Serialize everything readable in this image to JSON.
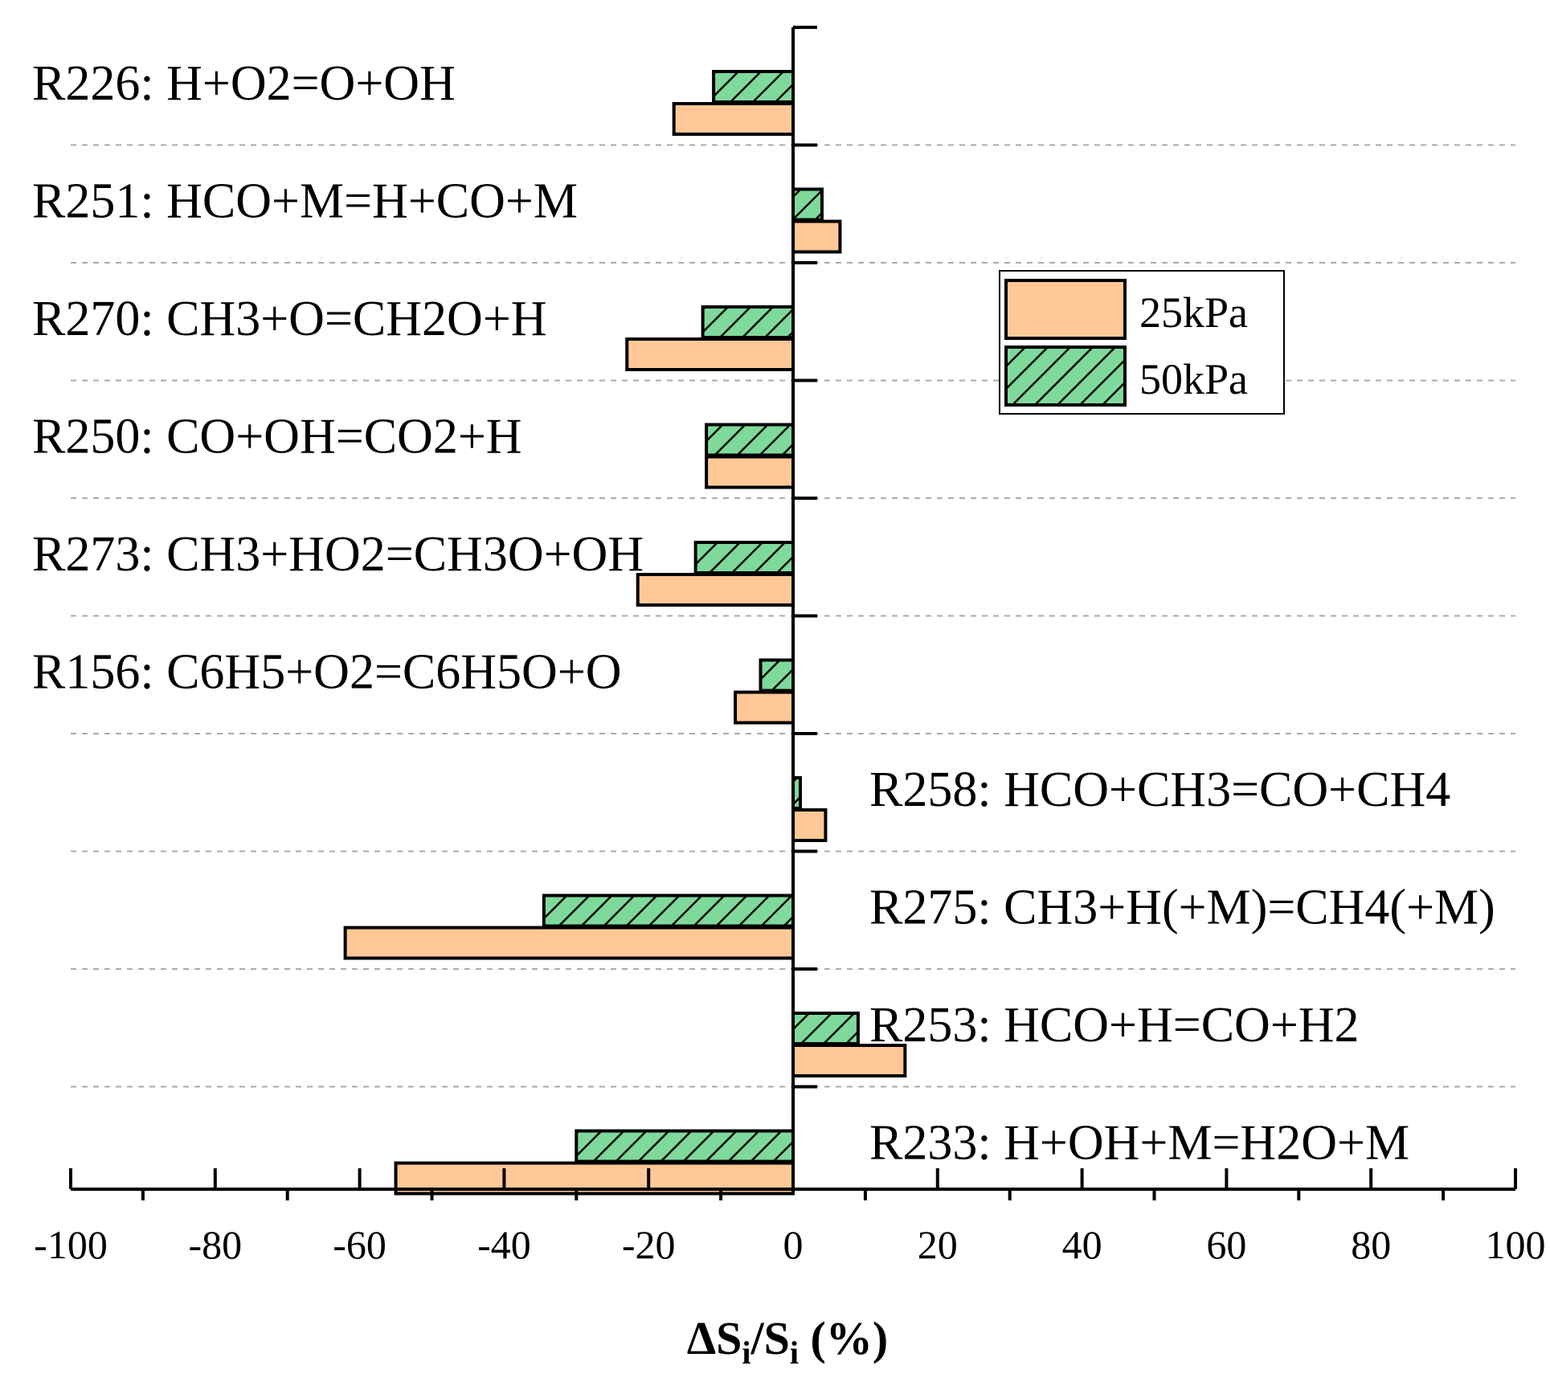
{
  "chart_data": {
    "type": "bar",
    "orientation": "horizontal",
    "title": "",
    "xlabel": {
      "delta": "ΔS",
      "sub1": "i",
      "slash": "/S",
      "sub2": "i",
      "unit": " (%)"
    },
    "ylabel": "",
    "xlim": [
      -100,
      100
    ],
    "x_ticks": [
      -100,
      -80,
      -60,
      -40,
      -20,
      0,
      20,
      40,
      60,
      80,
      100
    ],
    "grid": "horizontal dashed separators",
    "legend_position": "top-right",
    "categories": [
      "R226: H+O2=O+OH",
      "R251: HCO+M=H+CO+M",
      "R270: CH3+O=CH2O+H",
      "R250: CO+OH=CO2+H",
      "R273: CH3+HO2=CH3O+OH",
      "R156: C6H5+O2=C6H5O+O",
      "R258: HCO+CH3=CO+CH4",
      "R275: CH3+H(+M)=CH4(+M)",
      "R253: HCO+H=CO+H2",
      "R233: H+OH+M=H2O+M"
    ],
    "label_side": [
      "left",
      "left",
      "left",
      "left",
      "left",
      "left",
      "right",
      "right",
      "right",
      "right"
    ],
    "series": [
      {
        "name": "25kPa",
        "color": "#FFC896",
        "pattern": "solid",
        "values": [
          -16.5,
          6.5,
          -23,
          -12,
          -21.5,
          -8,
          4.5,
          -62,
          15.5,
          -55
        ]
      },
      {
        "name": "50kPa",
        "color": "#7FD99B",
        "pattern": "hatch",
        "values": [
          -11,
          4,
          -12.5,
          -12,
          -13.5,
          -4.5,
          1,
          -34.5,
          9,
          -30
        ]
      }
    ]
  }
}
